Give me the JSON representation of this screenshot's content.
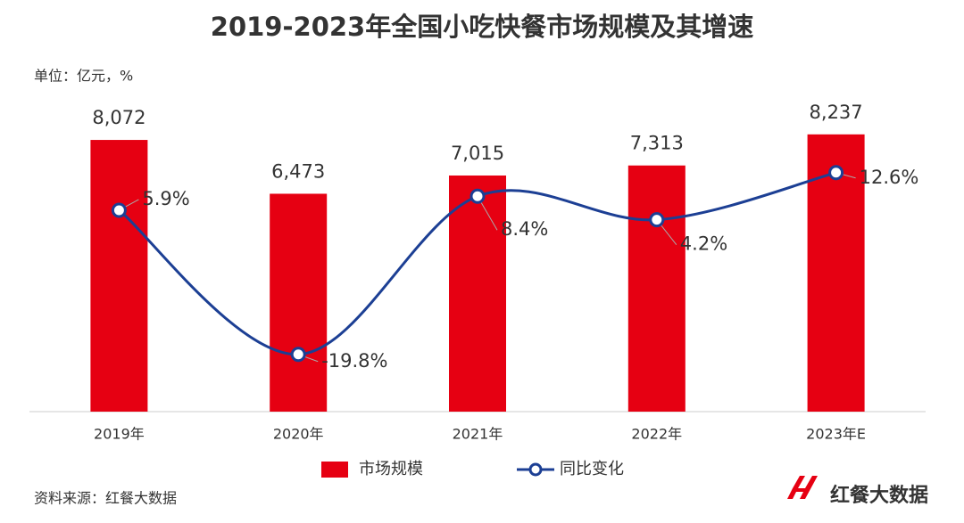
{
  "chart_data": {
    "type": "bar-line",
    "title": "2019-2023年全国小吃快餐市场规模及其增速",
    "subtitle": "单位：亿元，%",
    "source": "资料来源：红餐大数据",
    "brand": "红餐大数据",
    "categories": [
      "2019年",
      "2020年",
      "2021年",
      "2022年",
      "2023年E"
    ],
    "series": [
      {
        "name": "市场规模",
        "type": "bar",
        "color": "#e60012",
        "values": [
          8072,
          6473,
          7015,
          7313,
          8237
        ],
        "value_labels": [
          "8,072",
          "6,473",
          "7,015",
          "7,313",
          "8,237"
        ]
      },
      {
        "name": "同比变化",
        "type": "line",
        "axis": "y2",
        "color": "#1c3f94",
        "values": [
          5.9,
          -19.8,
          8.4,
          4.2,
          12.6
        ],
        "value_labels": [
          "5.9%",
          "-19.8%",
          "8.4%",
          "4.2%",
          "12.6%"
        ]
      }
    ],
    "ylim": [
      0,
      9000
    ],
    "y2lim": [
      -30,
      24
    ]
  }
}
